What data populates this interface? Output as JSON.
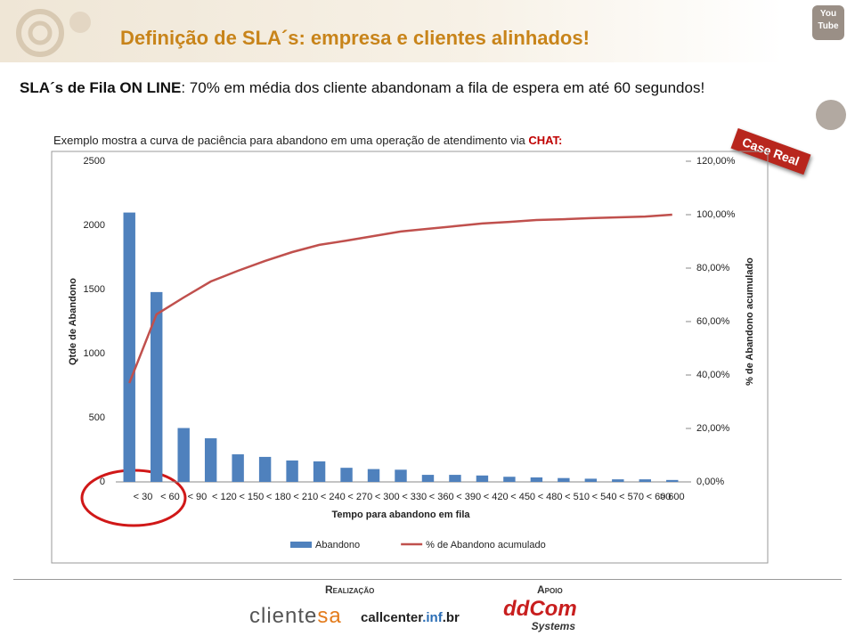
{
  "slide": {
    "title": "Definição de SLA´s: empresa e clientes alinhados!",
    "subtitle_bold": "SLA´s de Fila ON LINE",
    "subtitle_rest": ": 70% em média dos cliente abandonam a fila de espera em até 60 segundos!",
    "intro": "Exemplo mostra a curva de paciência para abandono em uma operação de atendimento via ",
    "intro_highlight": "CHAT:",
    "badge": "Case Real",
    "social": [
      "You",
      "Tube"
    ]
  },
  "chart_data": {
    "type": "bar",
    "x_label": "Tempo para abandono em fila",
    "y_label": "Qtde de Abandono",
    "y2_label": "% de Abandono acumulado",
    "categories": [
      "< 30",
      "< 60",
      "< 90",
      "< 120",
      "< 150",
      "< 180",
      "< 210",
      "< 240",
      "< 270",
      "< 300",
      "< 330",
      "< 360",
      "< 390",
      "< 420",
      "< 450",
      "< 480",
      "< 510",
      "< 540",
      "< 570",
      "< 600",
      "> 600"
    ],
    "series": [
      {
        "name": "Abandono",
        "type": "bar",
        "color": "#4f81bd",
        "values": [
          2100,
          1480,
          420,
          340,
          215,
          195,
          167,
          160,
          110,
          100,
          95,
          55,
          55,
          50,
          40,
          35,
          30,
          25,
          20,
          20,
          15
        ]
      },
      {
        "name": "% de Abandono acumulado",
        "type": "line",
        "axis": "y2",
        "color": "#c0504d",
        "values": [
          37,
          62.7,
          69,
          75,
          79,
          82.7,
          86,
          88.7,
          90.3,
          92,
          93.7,
          94.7,
          95.7,
          96.7,
          97.3,
          98,
          98.3,
          98.7,
          99,
          99.3,
          100
        ]
      }
    ],
    "ylim": [
      0,
      2500
    ],
    "yticks": [
      0,
      500,
      1000,
      1500,
      2000,
      2500
    ],
    "y2lim": [
      0,
      120
    ],
    "y2ticks": [
      {
        "value": 0,
        "label": "0,00%"
      },
      {
        "value": 20,
        "label": "20,00%"
      },
      {
        "value": 40,
        "label": "40,00%"
      },
      {
        "value": 60,
        "label": "60,00%"
      },
      {
        "value": 80,
        "label": "80,00%"
      },
      {
        "value": 100,
        "label": "100,00%"
      },
      {
        "value": 120,
        "label": "120,00%"
      }
    ],
    "grid": false,
    "legend": "bottom"
  },
  "footer": {
    "realizacao": "Realização",
    "apoio": "Apoio",
    "logo1": [
      "cliente",
      "sa"
    ],
    "logo2": [
      "callcenter",
      ".inf",
      ".br"
    ],
    "logo3": [
      "ddCom",
      "Systems"
    ]
  }
}
